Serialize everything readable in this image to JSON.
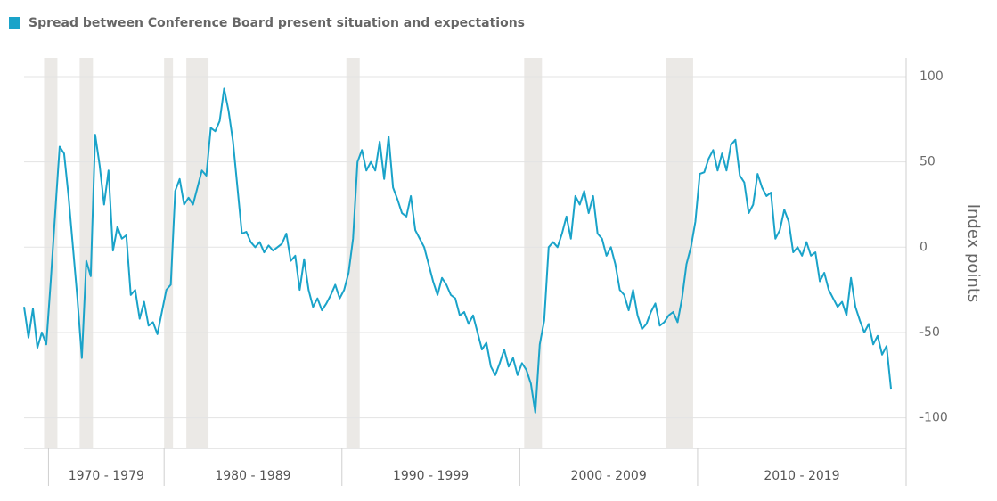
{
  "chart_data": {
    "type": "line",
    "title": "Spread between Conference Board present situation and expectations",
    "y_axis_label": "Index points",
    "color": "#1aa3c9",
    "shade_color": "#ebe9e6",
    "ylim": [
      -118,
      111
    ],
    "yticks": [
      -100,
      -50,
      0,
      50,
      100
    ],
    "grid": true,
    "groups": [
      {
        "label": null,
        "values": [
          -35,
          -53,
          -36,
          -59,
          -50,
          -57
        ]
      },
      {
        "label": "1970 - 1979",
        "values": [
          -20,
          20,
          59,
          55,
          30,
          0,
          -30,
          -65,
          -8,
          -17,
          66,
          48,
          25,
          45,
          -2,
          12,
          5,
          7,
          -28,
          -25,
          -42,
          -32,
          -46,
          -44,
          -51,
          -38
        ]
      },
      {
        "label": "1980 - 1989",
        "values": [
          -25,
          -22,
          33,
          40,
          25,
          29,
          25,
          35,
          45,
          42,
          70,
          68,
          74,
          93,
          80,
          62,
          35,
          8,
          9,
          3,
          0,
          3,
          -3,
          1,
          -2,
          0,
          2,
          8,
          -8,
          -5,
          -25,
          -7,
          -25,
          -35,
          -30,
          -37,
          -33,
          -28,
          -22,
          -30
        ]
      },
      {
        "label": "1990 - 1999",
        "values": [
          -25,
          -15,
          5,
          50,
          57,
          45,
          50,
          45,
          62,
          40,
          65,
          35,
          28,
          20,
          18,
          30,
          10,
          5,
          0,
          -10,
          -20,
          -28,
          -18,
          -22,
          -28,
          -30,
          -40,
          -38,
          -45,
          -40,
          -50,
          -60,
          -56,
          -70,
          -75,
          -68,
          -60,
          -70,
          -65,
          -75
        ]
      },
      {
        "label": "2000 - 2009",
        "values": [
          -68,
          -72,
          -80,
          -97,
          -57,
          -43,
          0,
          3,
          0,
          8,
          18,
          5,
          30,
          25,
          33,
          20,
          30,
          8,
          5,
          -5,
          0,
          -10,
          -25,
          -28,
          -37,
          -25,
          -40,
          -48,
          -45,
          -38,
          -33,
          -46,
          -44,
          -40,
          -38,
          -44,
          -30,
          -10,
          0,
          15
        ]
      },
      {
        "label": "2010 - 2019",
        "values": [
          43,
          44,
          52,
          57,
          45,
          55,
          45,
          60,
          63,
          42,
          38,
          20,
          25,
          43,
          35,
          30,
          32,
          5,
          10,
          22,
          15,
          -3,
          0,
          -5,
          3,
          -5,
          -3,
          -20,
          -15,
          -25,
          -30,
          -35,
          -32,
          -40,
          -18,
          -35,
          -43,
          -50,
          -45,
          -57,
          -52,
          -63,
          -58,
          -83
        ]
      }
    ],
    "shaded_ranges": [
      [
        5,
        7
      ],
      [
        13,
        15
      ],
      [
        32,
        33
      ],
      [
        37,
        41
      ],
      [
        73,
        75
      ],
      [
        113,
        116
      ],
      [
        145,
        150
      ]
    ]
  }
}
